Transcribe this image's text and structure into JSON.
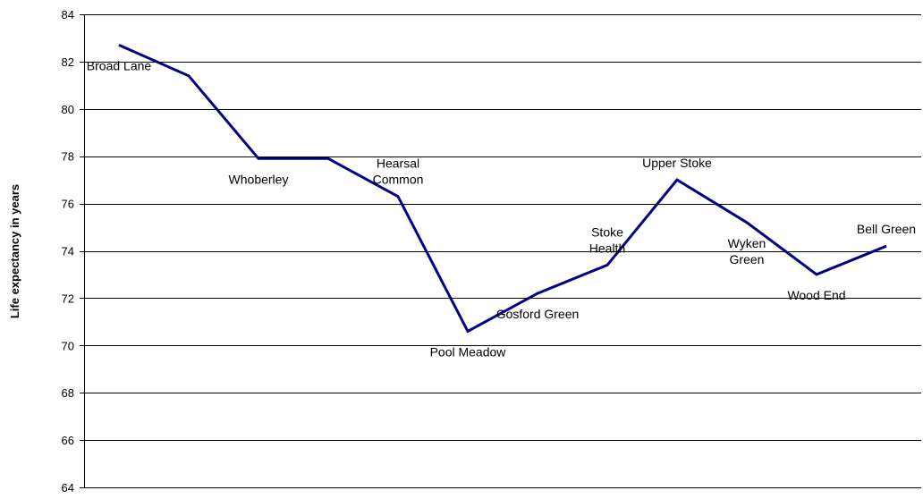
{
  "chart_data": {
    "type": "line",
    "title": "",
    "xlabel": "",
    "ylabel": "Life expectancy in years",
    "ylim": [
      64,
      84
    ],
    "yticks": [
      64,
      66,
      68,
      70,
      72,
      74,
      76,
      78,
      80,
      82,
      84
    ],
    "grid": true,
    "legend": "none",
    "categories": [
      "Broad Lane",
      "",
      "Whoberley",
      "",
      "Hearsal Common",
      "Pool Meadow",
      "Gosford Green",
      "Stoke Health",
      "Upper Stoke",
      "Wyken Green",
      "Wood End",
      "Bell Green"
    ],
    "series": [
      {
        "color": "#000080",
        "values": [
          82.7,
          81.4,
          77.9,
          77.9,
          76.3,
          70.6,
          72.2,
          73.4,
          77.0,
          75.2,
          73.0,
          74.2
        ]
      }
    ],
    "point_labels": [
      {
        "index": 0,
        "lines": [
          "Broad Lane"
        ],
        "pos": "below"
      },
      {
        "index": 2,
        "lines": [
          "Whoberley"
        ],
        "pos": "below"
      },
      {
        "index": 4,
        "lines": [
          "Hearsal",
          "Common"
        ],
        "pos": "above"
      },
      {
        "index": 5,
        "lines": [
          "Pool Meadow"
        ],
        "pos": "below"
      },
      {
        "index": 6,
        "lines": [
          "Gosford Green"
        ],
        "pos": "below"
      },
      {
        "index": 7,
        "lines": [
          "Stoke",
          "Health"
        ],
        "pos": "above"
      },
      {
        "index": 8,
        "lines": [
          "Upper Stoke"
        ],
        "pos": "above"
      },
      {
        "index": 9,
        "lines": [
          "Wyken",
          "Green"
        ],
        "pos": "below"
      },
      {
        "index": 10,
        "lines": [
          "Wood End"
        ],
        "pos": "below"
      },
      {
        "index": 11,
        "lines": [
          "Bell Green"
        ],
        "pos": "above"
      }
    ]
  }
}
